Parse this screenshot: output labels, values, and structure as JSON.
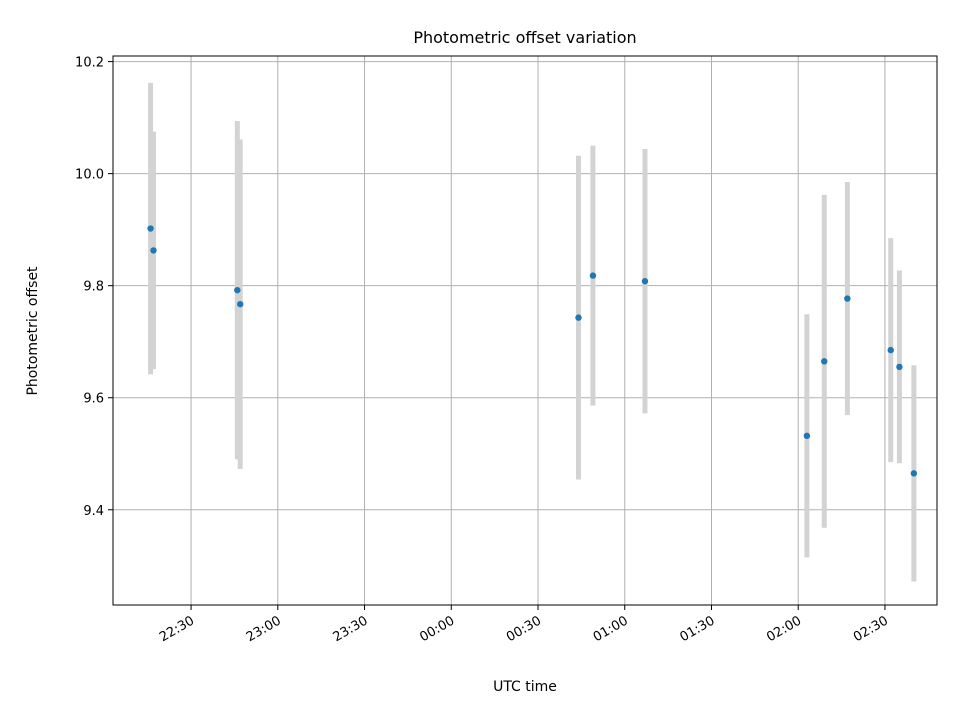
{
  "chart_data": {
    "type": "scatter",
    "title": "Photometric offset variation",
    "xlabel": "UTC time",
    "ylabel": "Photometric offset",
    "x_scale": "time",
    "xlim": [
      "2000-01-01T22:03:00",
      "2000-01-02T02:48:00"
    ],
    "ylim": [
      9.23,
      10.21
    ],
    "x_ticks": [
      {
        "t": "2000-01-01T22:30:00",
        "label": "22:30"
      },
      {
        "t": "2000-01-01T23:00:00",
        "label": "23:00"
      },
      {
        "t": "2000-01-01T23:30:00",
        "label": "23:30"
      },
      {
        "t": "2000-01-02T00:00:00",
        "label": "00:00"
      },
      {
        "t": "2000-01-02T00:30:00",
        "label": "00:30"
      },
      {
        "t": "2000-01-02T01:00:00",
        "label": "01:00"
      },
      {
        "t": "2000-01-02T01:30:00",
        "label": "01:30"
      },
      {
        "t": "2000-01-02T02:00:00",
        "label": "02:00"
      },
      {
        "t": "2000-01-02T02:30:00",
        "label": "02:30"
      }
    ],
    "y_ticks": [
      9.4,
      9.6,
      9.8,
      10.0,
      10.2
    ],
    "y_tick_labels": [
      "9.4",
      "9.6",
      "9.8",
      "10.0",
      "10.2"
    ],
    "grid": true,
    "point_color": "#1f77b4",
    "errorbar_color": "#d3d3d3",
    "points": [
      {
        "t": "2000-01-01T22:16:00",
        "y": 9.902,
        "err": 0.26
      },
      {
        "t": "2000-01-01T22:17:00",
        "y": 9.863,
        "err": 0.212
      },
      {
        "t": "2000-01-01T22:46:00",
        "y": 9.792,
        "err": 0.302
      },
      {
        "t": "2000-01-01T22:47:00",
        "y": 9.767,
        "err": 0.294
      },
      {
        "t": "2000-01-02T00:44:00",
        "y": 9.743,
        "err": 0.289
      },
      {
        "t": "2000-01-02T00:49:00",
        "y": 9.818,
        "err": 0.232
      },
      {
        "t": "2000-01-02T01:07:00",
        "y": 9.808,
        "err": 0.236
      },
      {
        "t": "2000-01-02T02:03:00",
        "y": 9.532,
        "err": 0.217
      },
      {
        "t": "2000-01-02T02:09:00",
        "y": 9.665,
        "err": 0.297
      },
      {
        "t": "2000-01-02T02:17:00",
        "y": 9.777,
        "err": 0.208
      },
      {
        "t": "2000-01-02T02:32:00",
        "y": 9.685,
        "err": 0.2
      },
      {
        "t": "2000-01-02T02:35:00",
        "y": 9.655,
        "err": 0.172
      },
      {
        "t": "2000-01-02T02:40:00",
        "y": 9.465,
        "err": 0.193
      }
    ]
  }
}
